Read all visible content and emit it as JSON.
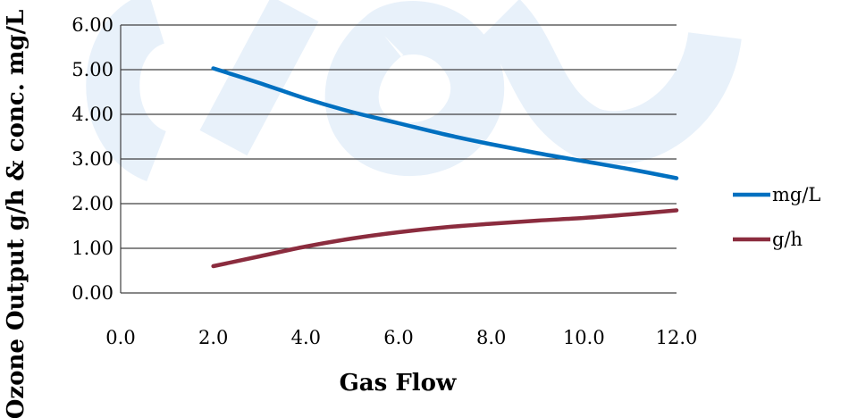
{
  "chart_data": {
    "type": "line",
    "title": "",
    "xlabel": "Gas Flow",
    "ylabel": "Ozone Output g/h & conc. mg/L",
    "xlim": [
      0,
      12
    ],
    "ylim": [
      0,
      6
    ],
    "x_ticks": [
      "0.0",
      "2.0",
      "4.0",
      "6.0",
      "8.0",
      "10.0",
      "12.0"
    ],
    "y_ticks": [
      "0.00",
      "1.00",
      "2.00",
      "3.00",
      "4.00",
      "5.00",
      "6.00"
    ],
    "grid": "horizontal",
    "legend_position": "right",
    "x": [
      2,
      3,
      4,
      5,
      6,
      7,
      8,
      9,
      10,
      11,
      12
    ],
    "series": [
      {
        "name": "mg/L",
        "color": "#0070c0",
        "values": [
          5.03,
          4.7,
          4.35,
          4.05,
          3.8,
          3.55,
          3.33,
          3.13,
          2.95,
          2.77,
          2.57
        ]
      },
      {
        "name": "g/h",
        "color": "#8b2c3e",
        "values": [
          0.6,
          0.82,
          1.04,
          1.22,
          1.36,
          1.47,
          1.55,
          1.62,
          1.68,
          1.76,
          1.85
        ]
      }
    ]
  }
}
